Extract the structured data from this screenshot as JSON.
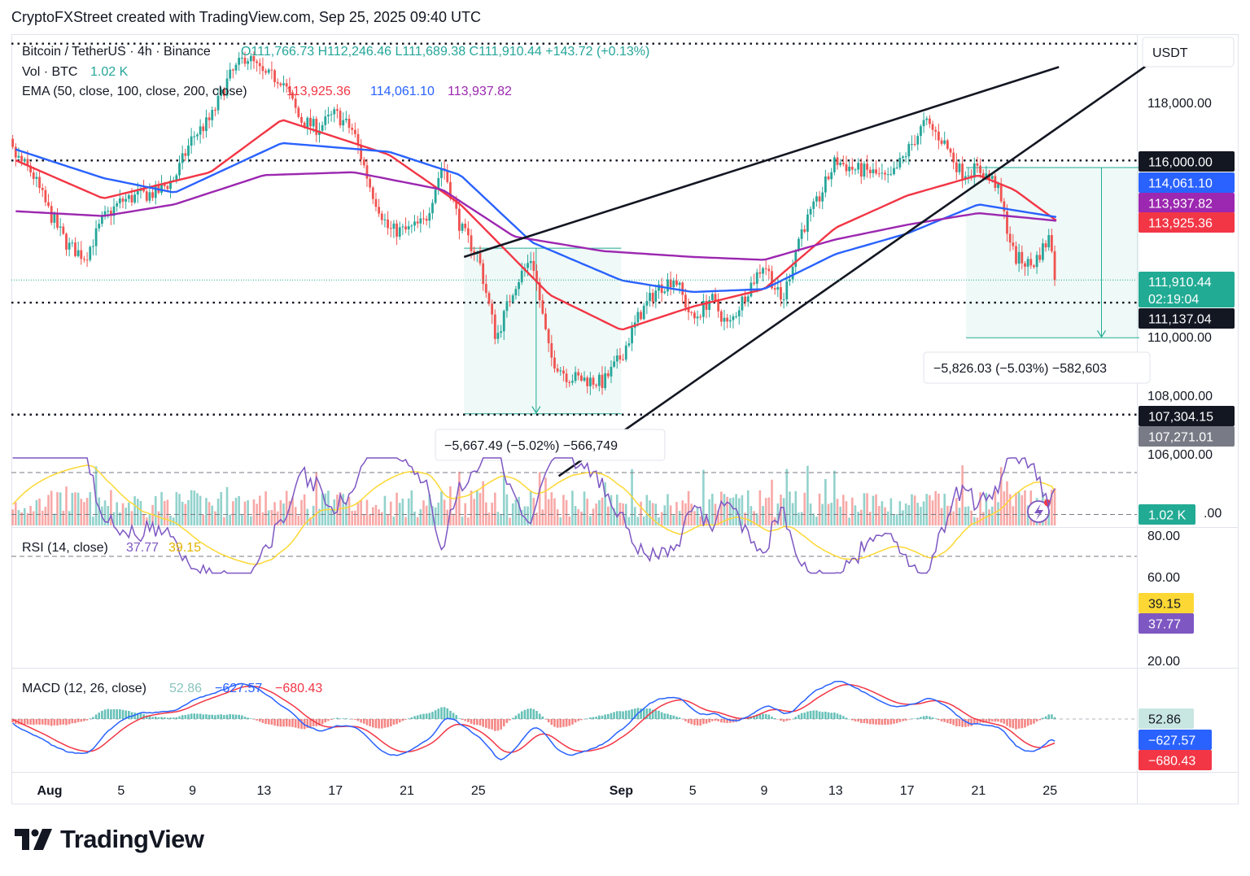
{
  "header": {
    "caption": "CryptoFXStreet created with TradingView.com, Sep 25, 2025 09:40 UTC"
  },
  "logo": {
    "text": "TradingView"
  },
  "price_pane": {
    "currency": "USDT",
    "legend_symbol": "Bitcoin / TetherUS · 4h · Binance",
    "legend_ohlc": "O111,766.73 H112,246.46 L111,689.38 C111,910.44 +143.72 (+0.13%)",
    "legend_vol_label": "Vol · BTC",
    "legend_vol_value": "1.02 K",
    "legend_ema_label": "EMA (50, close, 100, close, 200, close)",
    "legend_ema50": "113,925.36",
    "legend_ema100": "114,061.10",
    "legend_ema200": "113,937.82",
    "axis_ticks": [
      "118,000.00",
      "110,000.00",
      "108,000.00",
      "106,000.00"
    ],
    "axis_tick_zero_vol": ".00",
    "badges": {
      "level_116000": "116,000.00",
      "ema100": "114,061.10",
      "ema200": "113,937.82",
      "ema50": "113,925.36",
      "last_price": "111,910.44",
      "countdown": "02:19:04",
      "level_111137": "111,137.04",
      "level_107304": "107,304.15",
      "level_107271": "107,271.01",
      "volume": "1.02 K"
    },
    "measure_left": "−5,667.49 (−5.02%) −566,749",
    "measure_right": "−5,826.03 (−5.03%) −582,603"
  },
  "rsi_pane": {
    "legend_label": "RSI (14, close)",
    "legend_rsi": "37.77",
    "legend_ma": "39.15",
    "axis_ticks": [
      "80.00",
      "60.00",
      "20.00"
    ],
    "badge_ma": "39.15",
    "badge_rsi": "37.77"
  },
  "macd_pane": {
    "legend_label": "MACD (12, 26, close)",
    "legend_hist": "52.86",
    "legend_macd": "−627.57",
    "legend_signal": "−680.43",
    "badge_hist": "52.86",
    "badge_macd": "−627.57",
    "badge_signal": "−680.43"
  },
  "x_axis": {
    "labels": [
      {
        "label": "Aug",
        "bold": true,
        "day": 1
      },
      {
        "label": "5",
        "bold": false,
        "day": 5
      },
      {
        "label": "9",
        "bold": false,
        "day": 9
      },
      {
        "label": "13",
        "bold": false,
        "day": 13
      },
      {
        "label": "17",
        "bold": false,
        "day": 17
      },
      {
        "label": "21",
        "bold": false,
        "day": 21
      },
      {
        "label": "25",
        "bold": false,
        "day": 25
      },
      {
        "label": "Sep",
        "bold": true,
        "day": 33
      },
      {
        "label": "5",
        "bold": false,
        "day": 37
      },
      {
        "label": "9",
        "bold": false,
        "day": 41
      },
      {
        "label": "13",
        "bold": false,
        "day": 45
      },
      {
        "label": "17",
        "bold": false,
        "day": 49
      },
      {
        "label": "21",
        "bold": false,
        "day": 53
      },
      {
        "label": "25",
        "bold": false,
        "day": 57
      }
    ]
  },
  "colors": {
    "up": "#26a69a",
    "down": "#ef5350",
    "ema50": "#f23645",
    "ema100": "#2962ff",
    "ema200": "#9c27b0",
    "rsi": "#7e57c2",
    "rsi_ma": "#fdd835",
    "macd": "#2962ff",
    "signal": "#f23645",
    "last": "#22ab94",
    "black": "#131722"
  },
  "chart_data": {
    "type": "candlestick",
    "title": "Bitcoin / TetherUS · 4h · Binance",
    "x_unit": "days since Jul 31, 2025 (Aug 1 = 1)",
    "y_unit": "USDT",
    "ylim": [
      104000,
      120000
    ],
    "close_path": [
      [
        -2,
        117600
      ],
      [
        -1,
        116200
      ],
      [
        0,
        115600
      ],
      [
        1,
        114200
      ],
      [
        2,
        113100
      ],
      [
        3,
        112700
      ],
      [
        4,
        114000
      ],
      [
        5,
        114600
      ],
      [
        6,
        114800
      ],
      [
        7,
        114900
      ],
      [
        8,
        115400
      ],
      [
        9,
        116800
      ],
      [
        10,
        117400
      ],
      [
        11,
        118800
      ],
      [
        12,
        119600
      ],
      [
        13,
        118900
      ],
      [
        14,
        118800
      ],
      [
        15,
        117400
      ],
      [
        16,
        117100
      ],
      [
        17,
        117600
      ],
      [
        18,
        117000
      ],
      [
        19,
        115000
      ],
      [
        20,
        113600
      ],
      [
        21,
        113600
      ],
      [
        22,
        113900
      ],
      [
        23,
        115900
      ],
      [
        24,
        113700
      ],
      [
        25,
        112700
      ],
      [
        26,
        109900
      ],
      [
        27,
        111700
      ],
      [
        28,
        112700
      ],
      [
        29,
        109300
      ],
      [
        30,
        108600
      ],
      [
        31,
        108500
      ],
      [
        32,
        108400
      ],
      [
        33,
        109300
      ],
      [
        34,
        110700
      ],
      [
        35,
        111600
      ],
      [
        36,
        112000
      ],
      [
        37,
        110500
      ],
      [
        38,
        111300
      ],
      [
        39,
        110300
      ],
      [
        40,
        111500
      ],
      [
        41,
        112500
      ],
      [
        42,
        111100
      ],
      [
        43,
        113500
      ],
      [
        44,
        114600
      ],
      [
        45,
        116000
      ],
      [
        46,
        115700
      ],
      [
        47,
        115600
      ],
      [
        48,
        115300
      ],
      [
        49,
        116300
      ],
      [
        50,
        117300
      ],
      [
        51,
        116700
      ],
      [
        52,
        115600
      ],
      [
        53,
        115700
      ],
      [
        54,
        115200
      ],
      [
        55,
        112700
      ],
      [
        56,
        112400
      ],
      [
        57,
        113400
      ],
      [
        57.4,
        111910
      ]
    ],
    "emas": [
      {
        "name": "EMA 50",
        "points": [
          [
            -2,
            116300
          ],
          [
            4,
            114700
          ],
          [
            10,
            115600
          ],
          [
            14,
            117400
          ],
          [
            20,
            116200
          ],
          [
            24,
            114500
          ],
          [
            29,
            111400
          ],
          [
            33,
            110200
          ],
          [
            37,
            111000
          ],
          [
            41,
            111600
          ],
          [
            45,
            113700
          ],
          [
            49,
            114800
          ],
          [
            53,
            115500
          ],
          [
            55,
            115000
          ],
          [
            57.4,
            113925
          ]
        ]
      },
      {
        "name": "EMA 100",
        "points": [
          [
            -2,
            116600
          ],
          [
            4,
            115400
          ],
          [
            8,
            114900
          ],
          [
            14,
            116600
          ],
          [
            20,
            116300
          ],
          [
            24,
            115500
          ],
          [
            28,
            113200
          ],
          [
            33,
            111900
          ],
          [
            37,
            111500
          ],
          [
            41,
            111600
          ],
          [
            45,
            112800
          ],
          [
            49,
            113500
          ],
          [
            53,
            114500
          ],
          [
            57.4,
            114061
          ]
        ]
      },
      {
        "name": "EMA 200",
        "points": [
          [
            -2,
            114300
          ],
          [
            4,
            114100
          ],
          [
            8,
            114500
          ],
          [
            13,
            115500
          ],
          [
            18,
            115600
          ],
          [
            23,
            115000
          ],
          [
            27,
            113400
          ],
          [
            32,
            112900
          ],
          [
            37,
            112700
          ],
          [
            41,
            112600
          ],
          [
            45,
            113300
          ],
          [
            49,
            113800
          ],
          [
            53,
            114200
          ],
          [
            57.4,
            113937
          ]
        ]
      }
    ],
    "horizontal_levels": [
      120000,
      116000,
      111137.04,
      107304.15
    ],
    "trendlines": [
      {
        "from": [
          24.2,
          112700
        ],
        "to": [
          57.5,
          119200
        ]
      },
      {
        "from": [
          29.5,
          105200
        ],
        "to": [
          63,
          119500
        ]
      }
    ],
    "measures": [
      {
        "x0": 24.2,
        "x1": 33,
        "y0": 113000,
        "y1": 107332.51,
        "change": -5667.49,
        "percent": -5.02
      },
      {
        "x0": 52.3,
        "x1": 62,
        "y0": 115760,
        "y1": 109933.97,
        "change": -5826.03,
        "percent": -5.03
      }
    ],
    "last_price": 111910.44,
    "rsi": {
      "period": 14,
      "last": 37.77,
      "ma_last": 39.15,
      "bands": [
        70,
        50,
        30
      ]
    },
    "macd": {
      "fast": 12,
      "slow": 26,
      "histogram_last": 52.86,
      "macd_last": -627.57,
      "signal_last": -680.43
    }
  }
}
